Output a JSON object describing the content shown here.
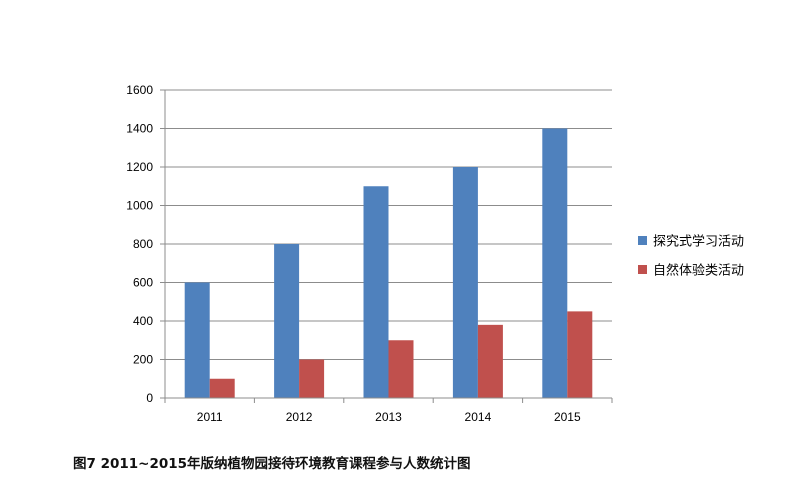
{
  "caption": "图7  2011~2015年版纳植物园接待环境教育课程参与人数统计图",
  "chart_data": {
    "type": "bar",
    "categories": [
      "2011",
      "2012",
      "2013",
      "2014",
      "2015"
    ],
    "series": [
      {
        "name": "探究式学习活动",
        "values": [
          600,
          800,
          1100,
          1200,
          1400
        ],
        "color": "#4F81BD"
      },
      {
        "name": "自然体验类活动",
        "values": [
          100,
          200,
          300,
          380,
          450
        ],
        "color": "#C0504D"
      }
    ],
    "ylim": [
      0,
      1600
    ],
    "yticks": [
      0,
      200,
      400,
      600,
      800,
      1000,
      1200,
      1400,
      1600
    ],
    "grid": true,
    "legend_position": "right",
    "title": "",
    "xlabel": "",
    "ylabel": ""
  }
}
